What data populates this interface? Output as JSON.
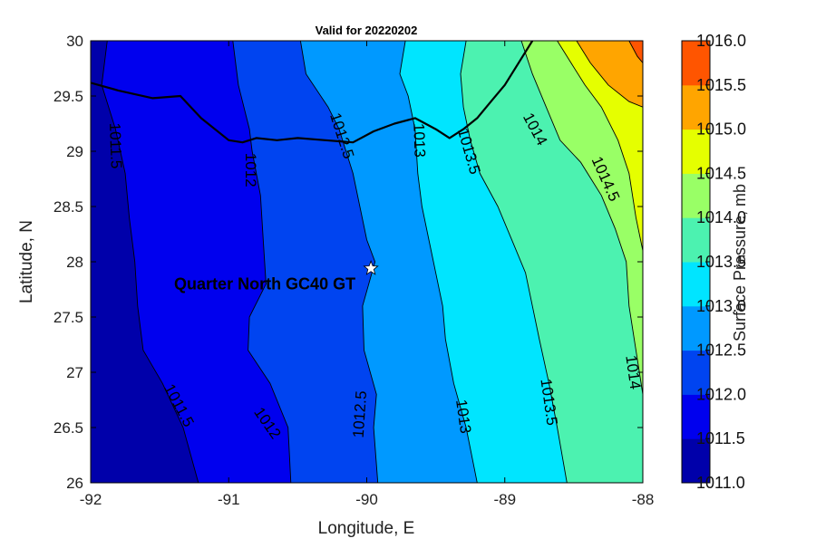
{
  "chart_data": {
    "type": "contour",
    "title": "Valid for 20220202",
    "xlabel": "Longitude, E",
    "ylabel": "Latitude, N",
    "xlim": [
      -92,
      -88
    ],
    "ylim": [
      26,
      30
    ],
    "xticks": [
      "-92",
      "-91",
      "-90",
      "-89",
      "-88"
    ],
    "yticks": [
      "26",
      "26.5",
      "27",
      "27.5",
      "28",
      "28.5",
      "29",
      "29.5",
      "30"
    ],
    "grid": false,
    "isolines": [
      {
        "level": 1011.5,
        "points": [
          [
            -91.88,
            30.0
          ],
          [
            -91.92,
            29.6
          ],
          [
            -91.82,
            29.2
          ],
          [
            -91.75,
            28.8
          ],
          [
            -91.72,
            28.4
          ],
          [
            -91.68,
            28.0
          ],
          [
            -91.66,
            27.6
          ],
          [
            -91.62,
            27.2
          ],
          [
            -91.48,
            26.9
          ],
          [
            -91.33,
            26.5
          ],
          [
            -91.22,
            26.0
          ]
        ]
      },
      {
        "level": 1012.0,
        "points": [
          [
            -90.97,
            30.0
          ],
          [
            -90.93,
            29.6
          ],
          [
            -90.85,
            29.2
          ],
          [
            -90.83,
            29.0
          ],
          [
            -90.77,
            28.6
          ],
          [
            -90.75,
            28.2
          ],
          [
            -90.73,
            27.8
          ],
          [
            -90.85,
            27.5
          ],
          [
            -90.86,
            27.2
          ],
          [
            -90.7,
            26.9
          ],
          [
            -90.57,
            26.5
          ],
          [
            -90.55,
            26.0
          ]
        ]
      },
      {
        "level": 1012.5,
        "points": [
          [
            -90.48,
            30.0
          ],
          [
            -90.44,
            29.7
          ],
          [
            -90.28,
            29.4
          ],
          [
            -90.2,
            29.2
          ],
          [
            -90.1,
            28.8
          ],
          [
            -90.05,
            28.5
          ],
          [
            -90.0,
            28.2
          ],
          [
            -89.94,
            28.0
          ],
          [
            -90.03,
            27.6
          ],
          [
            -90.02,
            27.2
          ],
          [
            -89.93,
            26.8
          ],
          [
            -89.95,
            26.5
          ],
          [
            -89.92,
            26.0
          ]
        ]
      },
      {
        "level": 1013.0,
        "points": [
          [
            -89.72,
            30.0
          ],
          [
            -89.76,
            29.7
          ],
          [
            -89.7,
            29.5
          ],
          [
            -89.65,
            29.2
          ],
          [
            -89.63,
            28.8
          ],
          [
            -89.6,
            28.5
          ],
          [
            -89.55,
            28.2
          ],
          [
            -89.5,
            27.9
          ],
          [
            -89.45,
            27.6
          ],
          [
            -89.43,
            27.3
          ],
          [
            -89.37,
            26.9
          ],
          [
            -89.28,
            26.5
          ],
          [
            -89.2,
            26.0
          ]
        ]
      },
      {
        "level": 1013.5,
        "points": [
          [
            -89.28,
            30.0
          ],
          [
            -89.32,
            29.7
          ],
          [
            -89.3,
            29.4
          ],
          [
            -89.25,
            29.1
          ],
          [
            -89.18,
            28.8
          ],
          [
            -89.05,
            28.5
          ],
          [
            -88.95,
            28.2
          ],
          [
            -88.85,
            27.9
          ],
          [
            -88.8,
            27.6
          ],
          [
            -88.75,
            27.3
          ],
          [
            -88.68,
            26.9
          ],
          [
            -88.62,
            26.5
          ],
          [
            -88.55,
            26.0
          ]
        ]
      },
      {
        "level": 1014.0,
        "points": [
          [
            -88.88,
            30.0
          ],
          [
            -88.8,
            29.7
          ],
          [
            -88.7,
            29.4
          ],
          [
            -88.6,
            29.1
          ],
          [
            -88.45,
            28.9
          ],
          [
            -88.3,
            28.6
          ],
          [
            -88.2,
            28.3
          ],
          [
            -88.12,
            28.0
          ],
          [
            -88.1,
            27.6
          ],
          [
            -88.05,
            27.2
          ],
          [
            -88.0,
            26.8
          ]
        ]
      },
      {
        "level": 1014.5,
        "points": [
          [
            -88.62,
            30.0
          ],
          [
            -88.52,
            29.8
          ],
          [
            -88.42,
            29.6
          ],
          [
            -88.3,
            29.4
          ],
          [
            -88.18,
            29.1
          ],
          [
            -88.1,
            28.8
          ],
          [
            -88.05,
            28.4
          ],
          [
            -88.0,
            28.1
          ]
        ]
      },
      {
        "level": 1015.0,
        "points": [
          [
            -88.48,
            30.0
          ],
          [
            -88.38,
            29.8
          ],
          [
            -88.25,
            29.6
          ],
          [
            -88.1,
            29.45
          ],
          [
            -88.0,
            29.4
          ]
        ]
      },
      {
        "level": 1015.5,
        "points": [
          [
            -88.1,
            30.0
          ],
          [
            -88.04,
            29.86
          ],
          [
            -88.0,
            29.8
          ]
        ]
      }
    ],
    "contour_labels": [
      {
        "text": "1011.5",
        "lon": -91.82,
        "lat": 29.05,
        "angle": 88
      },
      {
        "text": "1012",
        "lon": -90.84,
        "lat": 28.83,
        "angle": 90
      },
      {
        "text": "1012.5",
        "lon": -90.18,
        "lat": 29.14,
        "angle": 72
      },
      {
        "text": "1013",
        "lon": -89.62,
        "lat": 29.1,
        "angle": 88
      },
      {
        "text": "1013.5",
        "lon": -89.26,
        "lat": 29.0,
        "angle": 74
      },
      {
        "text": "1014",
        "lon": -88.78,
        "lat": 29.2,
        "angle": 62
      },
      {
        "text": "1014.5",
        "lon": -88.27,
        "lat": 28.75,
        "angle": 66
      },
      {
        "text": "1011.5",
        "lon": -91.36,
        "lat": 26.7,
        "angle": 62
      },
      {
        "text": "1012",
        "lon": -90.72,
        "lat": 26.54,
        "angle": 55
      },
      {
        "text": "1012.5",
        "lon": -90.05,
        "lat": 26.62,
        "angle": -86
      },
      {
        "text": "1013",
        "lon": -89.3,
        "lat": 26.6,
        "angle": 82
      },
      {
        "text": "1013.5",
        "lon": -88.68,
        "lat": 26.73,
        "angle": 82
      },
      {
        "text": "1014",
        "lon": -88.07,
        "lat": 27.0,
        "angle": 82
      }
    ],
    "station": {
      "name": "Quarter North GC40 GT",
      "lon": -89.97,
      "lat": 27.94
    },
    "coastline": [
      [
        -92.0,
        29.62
      ],
      [
        -91.8,
        29.55
      ],
      [
        -91.55,
        29.48
      ],
      [
        -91.35,
        29.5
      ],
      [
        -91.2,
        29.3
      ],
      [
        -91.0,
        29.1
      ],
      [
        -90.9,
        29.08
      ],
      [
        -90.8,
        29.12
      ],
      [
        -90.65,
        29.1
      ],
      [
        -90.5,
        29.12
      ],
      [
        -90.3,
        29.1
      ],
      [
        -90.1,
        29.08
      ],
      [
        -89.95,
        29.18
      ],
      [
        -89.8,
        29.25
      ],
      [
        -89.65,
        29.3
      ],
      [
        -89.5,
        29.2
      ],
      [
        -89.4,
        29.12
      ],
      [
        -89.3,
        29.2
      ],
      [
        -89.2,
        29.3
      ],
      [
        -89.1,
        29.45
      ],
      [
        -89.0,
        29.6
      ],
      [
        -88.9,
        29.8
      ],
      [
        -88.8,
        30.0
      ]
    ],
    "colorbar": {
      "label": "Surface Pressure, mb",
      "ticks": [
        "1011.0",
        "1011.5",
        "1012.0",
        "1012.5",
        "1013.0",
        "1013.5",
        "1014.0",
        "1014.5",
        "1015.0",
        "1015.5",
        "1016.0"
      ],
      "levels": [
        1011.0,
        1011.5,
        1012.0,
        1012.5,
        1013.0,
        1013.5,
        1014.0,
        1014.5,
        1015.0,
        1015.5,
        1016.0
      ],
      "colors": [
        "#0000aa",
        "#0000ee",
        "#0044f0",
        "#0099ff",
        "#00e5ff",
        "#4cf2b0",
        "#99ff66",
        "#e5ff00",
        "#ffa500",
        "#ff5500"
      ]
    }
  }
}
